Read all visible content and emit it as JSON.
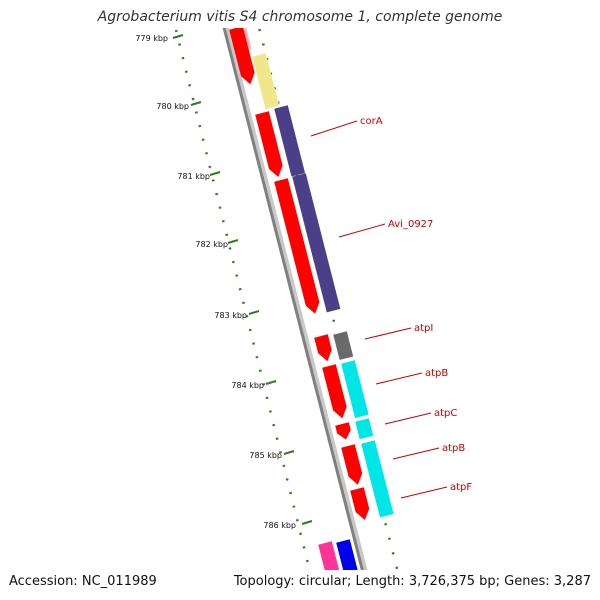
{
  "title": "Agrobacterium vitis S4 chromosome 1, complete genome",
  "footer": {
    "accession_label": "Accession:",
    "accession": "NC_011989",
    "topology_label": "Topology:",
    "topology": "circular",
    "length_label": "Length:",
    "length": "3,726,375 bp",
    "genes_label": "Genes:",
    "genes": "3,287"
  },
  "ticks": [
    "779 kbp",
    "780 kbp",
    "781 kbp",
    "782 kbp",
    "783 kbp",
    "784 kbp",
    "785 kbp",
    "786 kbp"
  ],
  "genes": [
    {
      "label": "corA"
    },
    {
      "label": "Avi_0927"
    },
    {
      "label": "atpI"
    },
    {
      "label": "atpB"
    },
    {
      "label": "atpC"
    },
    {
      "label": "atpB"
    },
    {
      "label": "atpF"
    }
  ],
  "colors": {
    "cds": "#ff0000",
    "backbone": "#808080",
    "tick": "#2e7d1e",
    "label": "#cc0000",
    "cog_purple": "#4b3f8a",
    "cog_cyan": "#00e5e5",
    "cog_gray": "#6a6a6a",
    "cog_yellow": "#f0e68c",
    "cog_pink": "#ffb6c1",
    "cog_magenta": "#ff3399",
    "cog_blue": "#0000ee"
  }
}
